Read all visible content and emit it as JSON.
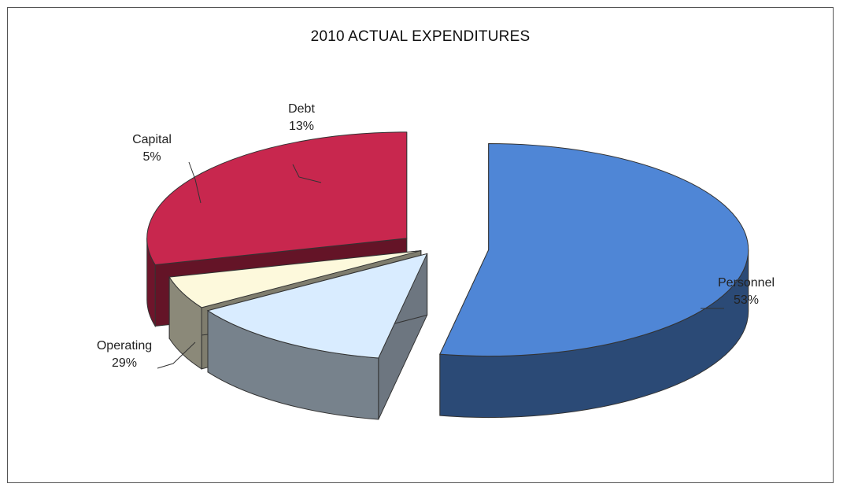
{
  "chart_data": {
    "type": "pie",
    "title": "2010 ACTUAL EXPENDITURES",
    "three_d": true,
    "exploded": true,
    "slices": [
      {
        "name": "Personnel",
        "value": 53,
        "label": "53%",
        "color": "#4f86d6"
      },
      {
        "name": "Debt",
        "value": 13,
        "label": "13%",
        "color": "#d9ecff"
      },
      {
        "name": "Capital",
        "value": 5,
        "label": "5%",
        "color": "#fdf9dc"
      },
      {
        "name": "Operating",
        "value": 29,
        "label": "29%",
        "color": "#c8274e"
      }
    ],
    "legend": "none"
  }
}
